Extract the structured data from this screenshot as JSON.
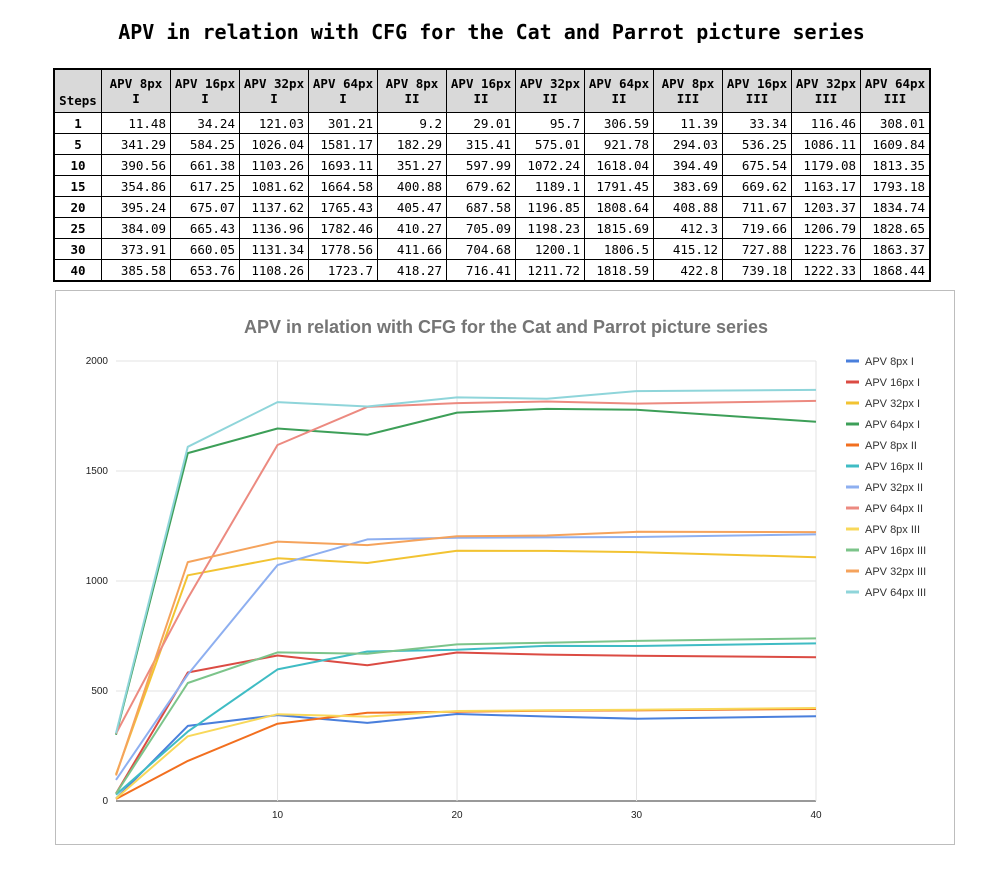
{
  "title": "APV in relation with CFG for the Cat and Parrot picture series",
  "table": {
    "headers": [
      "Steps",
      "APV 8px\nI",
      "APV 16px\nI",
      "APV 32px\nI",
      "APV 64px\nI",
      "APV 8px\nII",
      "APV 16px\nII",
      "APV 32px\nII",
      "APV 64px\nII",
      "APV 8px\nIII",
      "APV 16px\nIII",
      "APV 32px\nIII",
      "APV 64px\nIII"
    ],
    "rows": [
      [
        "1",
        "11.48",
        "34.24",
        "121.03",
        "301.21",
        "9.2",
        "29.01",
        "95.7",
        "306.59",
        "11.39",
        "33.34",
        "116.46",
        "308.01"
      ],
      [
        "5",
        "341.29",
        "584.25",
        "1026.04",
        "1581.17",
        "182.29",
        "315.41",
        "575.01",
        "921.78",
        "294.03",
        "536.25",
        "1086.11",
        "1609.84"
      ],
      [
        "10",
        "390.56",
        "661.38",
        "1103.26",
        "1693.11",
        "351.27",
        "597.99",
        "1072.24",
        "1618.04",
        "394.49",
        "675.54",
        "1179.08",
        "1813.35"
      ],
      [
        "15",
        "354.86",
        "617.25",
        "1081.62",
        "1664.58",
        "400.88",
        "679.62",
        "1189.1",
        "1791.45",
        "383.69",
        "669.62",
        "1163.17",
        "1793.18"
      ],
      [
        "20",
        "395.24",
        "675.07",
        "1137.62",
        "1765.43",
        "405.47",
        "687.58",
        "1196.85",
        "1808.64",
        "408.88",
        "711.67",
        "1203.37",
        "1834.74"
      ],
      [
        "25",
        "384.09",
        "665.43",
        "1136.96",
        "1782.46",
        "410.27",
        "705.09",
        "1198.23",
        "1815.69",
        "412.3",
        "719.66",
        "1206.79",
        "1828.65"
      ],
      [
        "30",
        "373.91",
        "660.05",
        "1131.34",
        "1778.56",
        "411.66",
        "704.68",
        "1200.1",
        "1806.5",
        "415.12",
        "727.88",
        "1223.76",
        "1863.37"
      ],
      [
        "40",
        "385.58",
        "653.76",
        "1108.26",
        "1723.7",
        "418.27",
        "716.41",
        "1211.72",
        "1818.59",
        "422.8",
        "739.18",
        "1222.33",
        "1868.44"
      ]
    ]
  },
  "chart_data": {
    "type": "line",
    "title": "APV in relation with CFG for the Cat and Parrot picture series",
    "xlabel": "",
    "ylabel": "",
    "x": [
      1,
      5,
      10,
      15,
      20,
      25,
      30,
      40
    ],
    "xlim": [
      1,
      40
    ],
    "ylim": [
      0,
      2000
    ],
    "x_ticks": [
      10,
      20,
      30,
      40
    ],
    "y_ticks": [
      0,
      500,
      1000,
      1500,
      2000
    ],
    "grid": "on",
    "legend_position": "right",
    "series": [
      {
        "name": "APV 8px I",
        "color": "#4a7fdc",
        "values": [
          11.48,
          341.29,
          390.56,
          354.86,
          395.24,
          384.09,
          373.91,
          385.58
        ]
      },
      {
        "name": "APV 16px I",
        "color": "#db4b43",
        "values": [
          34.24,
          584.25,
          661.38,
          617.25,
          675.07,
          665.43,
          660.05,
          653.76
        ]
      },
      {
        "name": "APV 32px I",
        "color": "#f2c332",
        "values": [
          121.03,
          1026.04,
          1103.26,
          1081.62,
          1137.62,
          1136.96,
          1131.34,
          1108.26
        ]
      },
      {
        "name": "APV 64px I",
        "color": "#3d9f58",
        "values": [
          301.21,
          1581.17,
          1693.11,
          1664.58,
          1765.43,
          1782.46,
          1778.56,
          1723.7
        ]
      },
      {
        "name": "APV 8px II",
        "color": "#f26f1f",
        "values": [
          9.2,
          182.29,
          351.27,
          400.88,
          405.47,
          410.27,
          411.66,
          418.27
        ]
      },
      {
        "name": "APV 16px II",
        "color": "#3fbcc4",
        "values": [
          29.01,
          315.41,
          597.99,
          679.62,
          687.58,
          705.09,
          704.68,
          716.41
        ]
      },
      {
        "name": "APV 32px II",
        "color": "#8eaff0",
        "values": [
          95.7,
          575.01,
          1072.24,
          1189.1,
          1196.85,
          1198.23,
          1200.1,
          1211.72
        ]
      },
      {
        "name": "APV 64px II",
        "color": "#ec8a80",
        "values": [
          306.59,
          921.78,
          1618.04,
          1791.45,
          1808.64,
          1815.69,
          1806.5,
          1818.59
        ]
      },
      {
        "name": "APV 8px III",
        "color": "#f8d85a",
        "values": [
          11.39,
          294.03,
          394.49,
          383.69,
          408.88,
          412.3,
          415.12,
          422.8
        ]
      },
      {
        "name": "APV 16px III",
        "color": "#7cc48a",
        "values": [
          33.34,
          536.25,
          675.54,
          669.62,
          711.67,
          719.66,
          727.88,
          739.18
        ]
      },
      {
        "name": "APV 32px III",
        "color": "#f5a35c",
        "values": [
          116.46,
          1086.11,
          1179.08,
          1163.17,
          1203.37,
          1206.79,
          1223.76,
          1222.33
        ]
      },
      {
        "name": "APV 64px III",
        "color": "#8fd5da",
        "values": [
          308.01,
          1609.84,
          1813.35,
          1793.18,
          1834.74,
          1828.65,
          1863.37,
          1868.44
        ]
      }
    ]
  }
}
